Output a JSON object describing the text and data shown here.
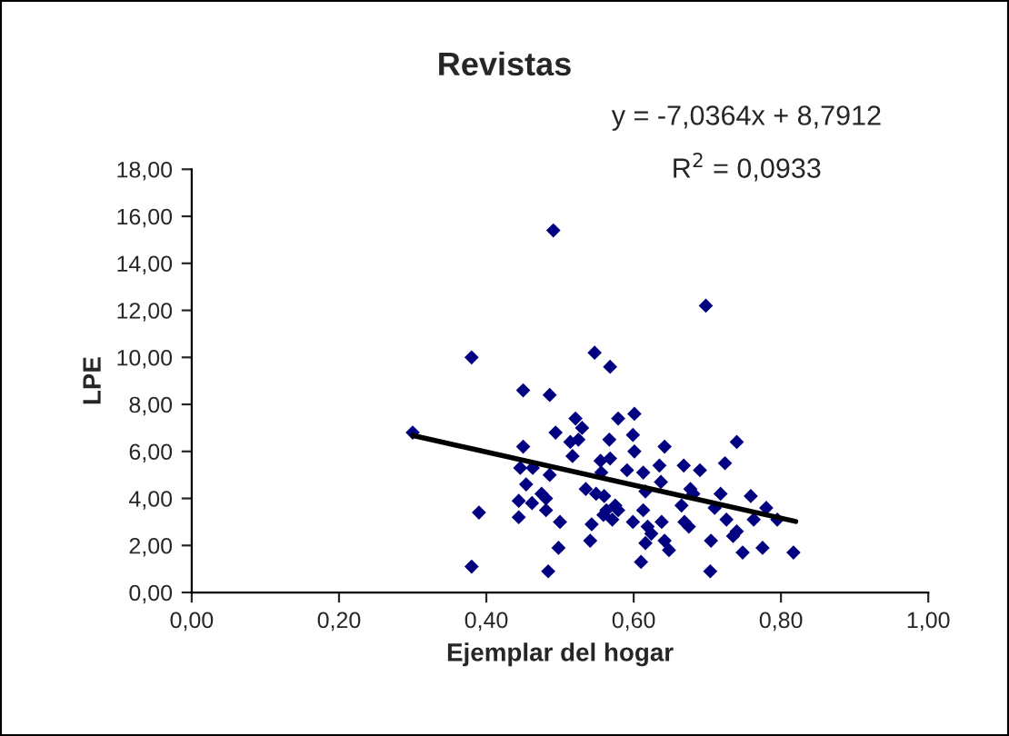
{
  "chart_data": {
    "type": "scatter",
    "title": "Revistas",
    "xlabel": "Ejemplar del hogar",
    "ylabel": "LPE",
    "annotations": [
      "y = -7,0364x + 8,7912",
      "R$^{2}$ = 0,0933"
    ],
    "xlim": [
      0,
      1
    ],
    "ylim": [
      0,
      18
    ],
    "xticks": [
      {
        "value": 0,
        "label": "0,00"
      },
      {
        "value": 0.2,
        "label": "0,20"
      },
      {
        "value": 0.4,
        "label": "0,40"
      },
      {
        "value": 0.6,
        "label": "0,60"
      },
      {
        "value": 0.8,
        "label": "0,80"
      },
      {
        "value": 1,
        "label": "1,00"
      }
    ],
    "yticks": [
      {
        "value": 0,
        "label": "0,00"
      },
      {
        "value": 2,
        "label": "2,00"
      },
      {
        "value": 4,
        "label": "4,00"
      },
      {
        "value": 6,
        "label": "6,00"
      },
      {
        "value": 8,
        "label": "8,00"
      },
      {
        "value": 10,
        "label": "10,00"
      },
      {
        "value": 12,
        "label": "12,00"
      },
      {
        "value": 14,
        "label": "14,00"
      },
      {
        "value": 16,
        "label": "16,00"
      },
      {
        "value": 18,
        "label": "18,00"
      }
    ],
    "grid": false,
    "legend": false,
    "marker": "diamond",
    "series": [
      {
        "color": "#000080",
        "x": [
          0.491,
          0.698,
          0.547,
          0.568,
          0.45,
          0.486,
          0.521,
          0.53,
          0.579,
          0.601,
          0.494,
          0.514,
          0.525,
          0.567,
          0.599,
          0.642,
          0.74,
          0.45,
          0.517,
          0.568,
          0.601,
          0.555,
          0.446,
          0.463,
          0.486,
          0.556,
          0.591,
          0.613,
          0.635,
          0.668,
          0.69,
          0.724,
          0.454,
          0.475,
          0.481,
          0.535,
          0.549,
          0.56,
          0.616,
          0.637,
          0.677,
          0.681,
          0.718,
          0.759,
          0.444,
          0.462,
          0.481,
          0.575,
          0.579,
          0.613,
          0.665,
          0.71,
          0.78,
          0.444,
          0.559,
          0.571,
          0.599,
          0.638,
          0.669,
          0.675,
          0.726,
          0.763,
          0.795,
          0.5,
          0.543,
          0.619,
          0.624,
          0.642,
          0.648,
          0.616,
          0.541,
          0.498,
          0.705,
          0.735,
          0.74,
          0.748,
          0.775,
          0.817,
          0.61,
          0.484,
          0.704,
          0.563,
          0.38,
          0.38,
          0.39,
          0.3
        ],
        "values": [
          15.4,
          12.2,
          10.2,
          9.6,
          8.6,
          8.4,
          7.4,
          7.0,
          7.4,
          7.6,
          6.8,
          6.4,
          6.5,
          6.5,
          6.7,
          6.2,
          6.4,
          6.2,
          5.8,
          5.7,
          6.0,
          5.6,
          5.3,
          5.3,
          5.0,
          5.1,
          5.2,
          5.1,
          5.4,
          5.4,
          5.2,
          5.5,
          4.6,
          4.2,
          4.0,
          4.4,
          4.2,
          4.1,
          4.3,
          4.7,
          4.4,
          4.2,
          4.2,
          4.1,
          3.9,
          3.8,
          3.5,
          3.7,
          3.5,
          3.5,
          3.7,
          3.6,
          3.6,
          3.2,
          3.3,
          3.1,
          3.0,
          3.0,
          3.0,
          2.8,
          3.1,
          3.1,
          3.1,
          3.0,
          2.9,
          2.8,
          2.5,
          2.2,
          1.8,
          2.1,
          2.2,
          1.9,
          2.2,
          2.4,
          2.6,
          1.7,
          1.9,
          1.7,
          1.3,
          0.9,
          0.9,
          3.5,
          10.0,
          1.1,
          3.4,
          6.8
        ]
      },
      {
        "type": "line",
        "color": "#000000",
        "x": [
          0.3,
          0.82
        ],
        "values": [
          6.68,
          3.02
        ],
        "marker": "none",
        "line_style": "solid"
      }
    ]
  }
}
